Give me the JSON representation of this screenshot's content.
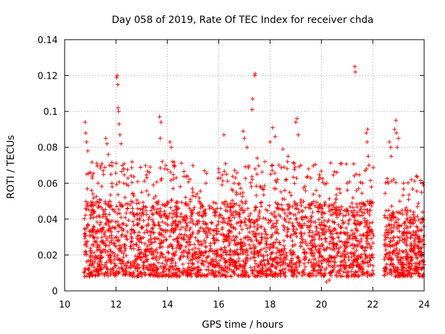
{
  "chart_data": {
    "type": "scatter",
    "title": "Day 058 of 2019, Rate Of TEC Index for receiver chda",
    "xlabel": "GPS time / hours",
    "ylabel": "ROTI / TECUs",
    "xlim": [
      10,
      24
    ],
    "ylim": [
      0,
      0.14
    ],
    "x_ticks": [
      10,
      12,
      14,
      16,
      18,
      20,
      22,
      24
    ],
    "x_tick_labels": [
      "10",
      "12",
      "14",
      "16",
      "18",
      "20",
      "22",
      "24"
    ],
    "y_ticks": [
      0,
      0.02,
      0.04,
      0.06,
      0.08,
      0.1,
      0.12,
      0.14
    ],
    "y_tick_labels": [
      "0",
      "0.02",
      "0.04",
      "0.06",
      "0.08",
      "0.1",
      "0.12",
      "0.14"
    ],
    "grid": true,
    "marker": "+",
    "color": "#ff0000",
    "series": [
      {
        "name": "ROTI",
        "points": [
          [
            10.8,
            0.094
          ],
          [
            10.82,
            0.088
          ],
          [
            10.85,
            0.083
          ],
          [
            10.9,
            0.078
          ],
          [
            11.0,
            0.066
          ],
          [
            11.05,
            0.056
          ],
          [
            11.1,
            0.054
          ],
          [
            11.3,
            0.06
          ],
          [
            11.5,
            0.067
          ],
          [
            11.6,
            0.085
          ],
          [
            11.65,
            0.082
          ],
          [
            11.7,
            0.076
          ],
          [
            11.75,
            0.07
          ],
          [
            11.8,
            0.065
          ],
          [
            11.85,
            0.058
          ],
          [
            12.02,
            0.119
          ],
          [
            12.05,
            0.12
          ],
          [
            12.07,
            0.115
          ],
          [
            12.08,
            0.102
          ],
          [
            12.1,
            0.1
          ],
          [
            12.12,
            0.093
          ],
          [
            12.15,
            0.087
          ],
          [
            12.2,
            0.082
          ],
          [
            12.25,
            0.07
          ],
          [
            12.3,
            0.06
          ],
          [
            12.35,
            0.052
          ],
          [
            13.0,
            0.055
          ],
          [
            13.2,
            0.063
          ],
          [
            13.3,
            0.066
          ],
          [
            13.45,
            0.059
          ],
          [
            13.7,
            0.097
          ],
          [
            13.75,
            0.094
          ],
          [
            13.72,
            0.085
          ],
          [
            13.8,
            0.072
          ],
          [
            13.9,
            0.068
          ],
          [
            14.1,
            0.083
          ],
          [
            14.15,
            0.08
          ],
          [
            14.2,
            0.072
          ],
          [
            14.5,
            0.058
          ],
          [
            15.0,
            0.055
          ],
          [
            15.5,
            0.06
          ],
          [
            16.0,
            0.068
          ],
          [
            16.2,
            0.087
          ],
          [
            16.3,
            0.065
          ],
          [
            16.6,
            0.06
          ],
          [
            16.95,
            0.089
          ],
          [
            17.0,
            0.085
          ],
          [
            17.1,
            0.08
          ],
          [
            17.3,
            0.101
          ],
          [
            17.32,
            0.107
          ],
          [
            17.4,
            0.12
          ],
          [
            17.42,
            0.121
          ],
          [
            17.5,
            0.074
          ],
          [
            17.8,
            0.072
          ],
          [
            18.0,
            0.083
          ],
          [
            18.1,
            0.091
          ],
          [
            18.2,
            0.086
          ],
          [
            18.5,
            0.079
          ],
          [
            18.7,
            0.075
          ],
          [
            19.0,
            0.094
          ],
          [
            19.05,
            0.096
          ],
          [
            19.1,
            0.087
          ],
          [
            19.2,
            0.07
          ],
          [
            19.5,
            0.068
          ],
          [
            19.9,
            0.062
          ],
          [
            20.2,
            0.06
          ],
          [
            20.6,
            0.066
          ],
          [
            21.0,
            0.06
          ],
          [
            21.3,
            0.125
          ],
          [
            21.32,
            0.122
          ],
          [
            21.6,
            0.06
          ],
          [
            21.7,
            0.067
          ],
          [
            21.75,
            0.088
          ],
          [
            21.8,
            0.09
          ],
          [
            21.78,
            0.083
          ],
          [
            21.82,
            0.075
          ],
          [
            21.85,
            0.07
          ],
          [
            22.6,
            0.06
          ],
          [
            22.65,
            0.083
          ],
          [
            22.7,
            0.08
          ],
          [
            22.72,
            0.075
          ],
          [
            22.85,
            0.09
          ],
          [
            22.9,
            0.095
          ],
          [
            22.92,
            0.088
          ],
          [
            22.95,
            0.08
          ],
          [
            23.0,
            0.085
          ],
          [
            23.2,
            0.06
          ],
          [
            23.5,
            0.062
          ],
          [
            23.7,
            0.064
          ],
          [
            23.9,
            0.055
          ],
          [
            10.78,
            0.008
          ],
          [
            13.0,
            0.01
          ],
          [
            16.5,
            0.008
          ],
          [
            20.2,
            0.005
          ],
          [
            20.3,
            0.006
          ],
          [
            23.95,
            0.008
          ],
          [
            22.5,
            0.012
          ],
          [
            18.0,
            0.009
          ]
        ]
      }
    ],
    "density_bands": [
      {
        "x_start": 10.75,
        "x_end": 22.05,
        "y_floor": 0.008,
        "y_body_top": 0.05,
        "y_tail_top": 0.072,
        "count": 2700
      },
      {
        "x_start": 22.45,
        "x_end": 24.0,
        "y_floor": 0.008,
        "y_body_top": 0.045,
        "y_tail_top": 0.065,
        "count": 420
      }
    ]
  }
}
